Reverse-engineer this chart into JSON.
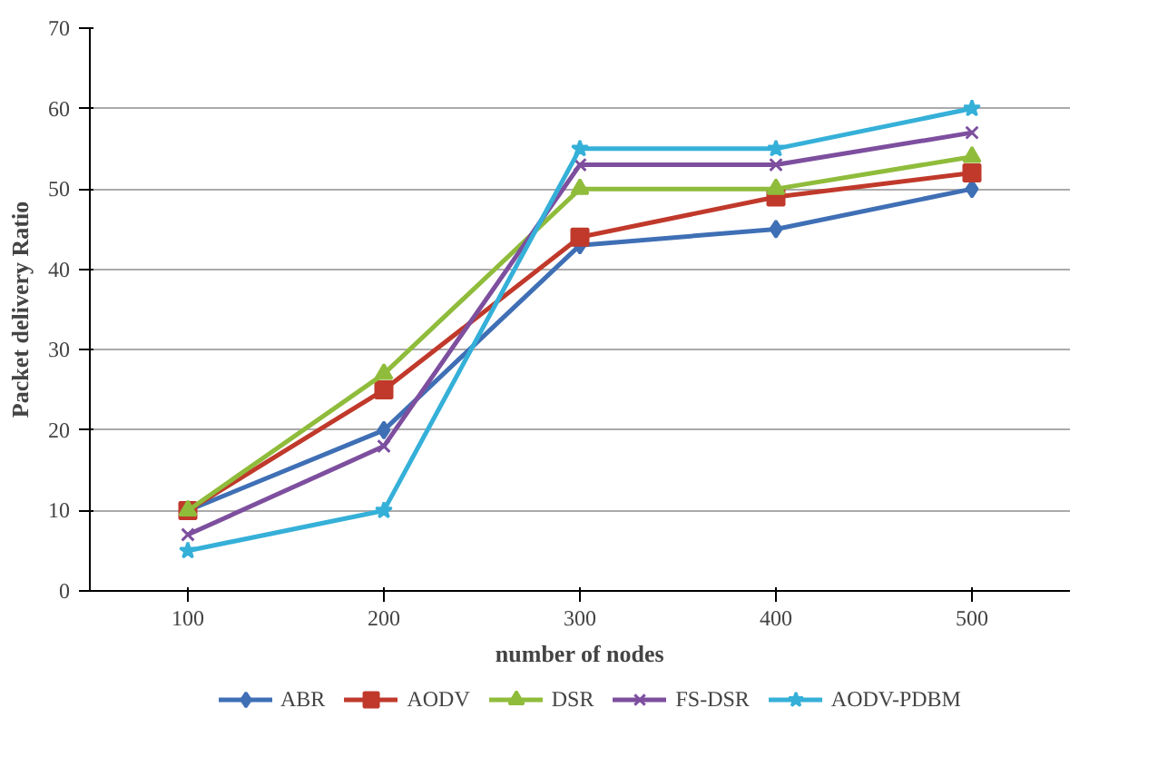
{
  "chart_data": {
    "type": "line",
    "xlabel": "number of nodes",
    "ylabel": "Packet delivery Ratio",
    "categories": [
      "100",
      "200",
      "300",
      "400",
      "500"
    ],
    "series": [
      {
        "name": "ABR",
        "color": "#3f6fb5",
        "marker": "diamond",
        "values": [
          10,
          20,
          43,
          45,
          50
        ]
      },
      {
        "name": "AODV",
        "color": "#c0392b",
        "marker": "square",
        "values": [
          10,
          25,
          44,
          49,
          52
        ]
      },
      {
        "name": "DSR",
        "color": "#8fbc3b",
        "marker": "triangle",
        "values": [
          10,
          27,
          50,
          50,
          54
        ]
      },
      {
        "name": "FS-DSR",
        "color": "#7d4f9e",
        "marker": "cross",
        "values": [
          7,
          18,
          53,
          53,
          57
        ]
      },
      {
        "name": "AODV-PDBM",
        "color": "#35b0d8",
        "marker": "star",
        "values": [
          5,
          10,
          55,
          55,
          60
        ]
      }
    ],
    "ylim": [
      0,
      70
    ],
    "yticks": [
      0,
      10,
      20,
      30,
      40,
      50,
      60,
      70
    ],
    "grid": "y",
    "legend": "bottom"
  }
}
